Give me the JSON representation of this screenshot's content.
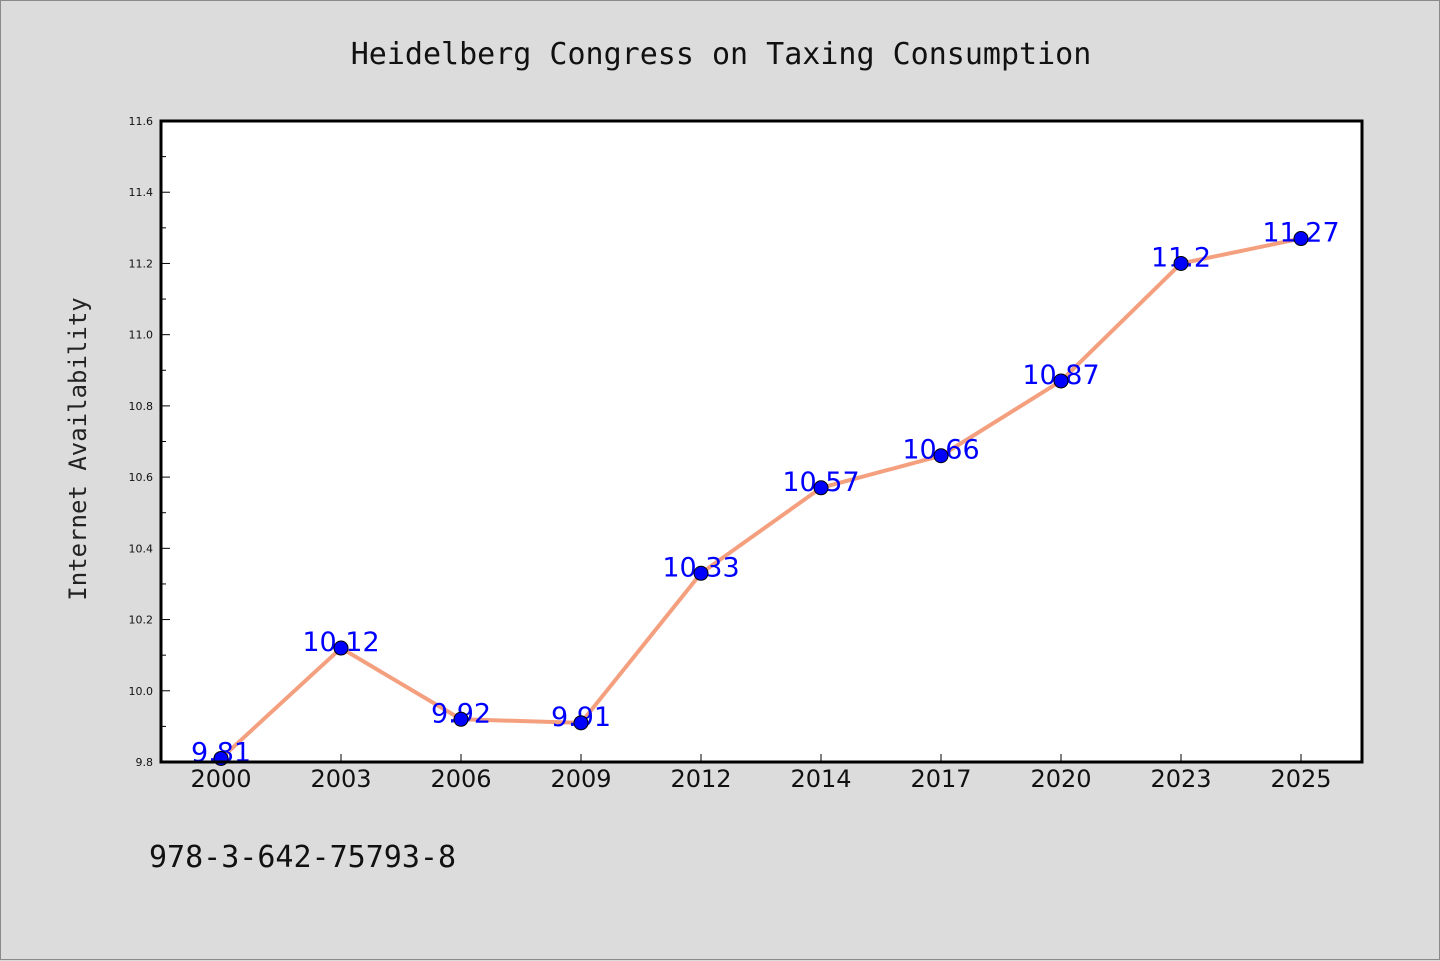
{
  "chart_data": {
    "type": "line",
    "title": "Heidelberg Congress on Taxing Consumption",
    "xlabel": "",
    "ylabel": "Internet Availability",
    "categories": [
      "2000",
      "2003",
      "2006",
      "2009",
      "2012",
      "2014",
      "2017",
      "2020",
      "2023",
      "2025"
    ],
    "series": [
      {
        "values": [
          9.81,
          10.12,
          9.92,
          9.91,
          10.33,
          10.57,
          10.66,
          10.87,
          11.2,
          11.27
        ],
        "data_labels": [
          "9.81",
          "10.12",
          "9.92",
          "9.91",
          "10.33",
          "10.57",
          "10.66",
          "10.87",
          "11.2",
          "11.27"
        ],
        "line_color": "#f4a07f",
        "marker_color": "#0000ff"
      }
    ],
    "ylim": [
      9.8,
      11.6
    ],
    "yticks": [
      "9.8",
      "10.0",
      "10.2",
      "10.4",
      "10.6",
      "10.8",
      "11.0",
      "11.2",
      "11.4",
      "11.6"
    ],
    "grid": false,
    "legend": "none"
  },
  "footnote": "978-3-642-75793-8",
  "colors": {
    "background": "#dcdcdc",
    "plot_area": "#ffffff",
    "label_text": "#0000ff"
  }
}
